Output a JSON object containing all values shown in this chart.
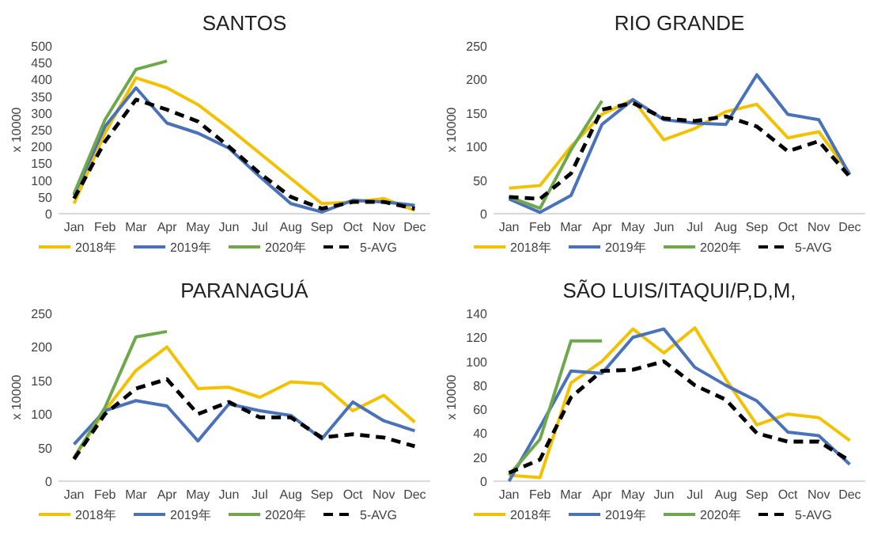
{
  "chart_data": [
    {
      "type": "line",
      "title": "SANTOS",
      "ylabel": "x 10000",
      "categories": [
        "Jan",
        "Feb",
        "Mar",
        "Apr",
        "May",
        "Jun",
        "Jul",
        "Aug",
        "Sep",
        "Oct",
        "Nov",
        "Dec"
      ],
      "ylim": [
        0,
        500
      ],
      "yticks": [
        0,
        50,
        100,
        150,
        200,
        250,
        300,
        350,
        400,
        450,
        500
      ],
      "legend": "bottom",
      "series": [
        {
          "name": "2018年",
          "color": "#f2c200",
          "values": [
            30,
            240,
            405,
            375,
            325,
            255,
            180,
            105,
            30,
            35,
            45,
            10
          ]
        },
        {
          "name": "2019年",
          "color": "#4a72b8",
          "values": [
            55,
            260,
            375,
            270,
            240,
            195,
            110,
            30,
            5,
            40,
            35,
            25
          ]
        },
        {
          "name": "2020年",
          "color": "#6fa84c",
          "values": [
            60,
            280,
            430,
            455,
            null,
            null,
            null,
            null,
            null,
            null,
            null,
            null
          ]
        },
        {
          "name": "5-AVG",
          "color": "#000000",
          "line_style": "dashed",
          "values": [
            45,
            215,
            340,
            310,
            275,
            200,
            120,
            50,
            15,
            35,
            35,
            15
          ]
        }
      ]
    },
    {
      "type": "line",
      "title": "RIO GRANDE",
      "ylabel": "x 10000",
      "categories": [
        "Jan",
        "Feb",
        "Mar",
        "Apr",
        "May",
        "Jun",
        "Jul",
        "Aug",
        "Sep",
        "Oct",
        "Nov",
        "Dec"
      ],
      "ylim": [
        0,
        250
      ],
      "yticks": [
        0,
        50,
        100,
        150,
        200,
        250
      ],
      "legend": "bottom",
      "series": [
        {
          "name": "2018年",
          "color": "#f2c200",
          "values": [
            38,
            42,
            100,
            148,
            170,
            110,
            127,
            152,
            163,
            113,
            122,
            60
          ]
        },
        {
          "name": "2019年",
          "color": "#4a72b8",
          "values": [
            22,
            2,
            27,
            133,
            170,
            140,
            135,
            133,
            207,
            148,
            140,
            58
          ]
        },
        {
          "name": "2020年",
          "color": "#6fa84c",
          "values": [
            25,
            8,
            95,
            168,
            null,
            null,
            null,
            null,
            null,
            null,
            null,
            null
          ]
        },
        {
          "name": "5-AVG",
          "color": "#000000",
          "line_style": "dashed",
          "values": [
            25,
            22,
            60,
            155,
            165,
            142,
            138,
            145,
            130,
            93,
            108,
            55
          ]
        }
      ]
    },
    {
      "type": "line",
      "title": "PARANAGUÁ",
      "ylabel": "x 10000",
      "categories": [
        "Jan",
        "Feb",
        "Mar",
        "Apr",
        "May",
        "Jun",
        "Jul",
        "Aug",
        "Sep",
        "Oct",
        "Nov",
        "Dec"
      ],
      "ylim": [
        0,
        250
      ],
      "yticks": [
        0,
        50,
        100,
        150,
        200,
        250
      ],
      "legend": "bottom",
      "series": [
        {
          "name": "2018年",
          "color": "#f2c200",
          "values": [
            35,
            105,
            165,
            200,
            138,
            140,
            125,
            148,
            145,
            105,
            128,
            88
          ]
        },
        {
          "name": "2019年",
          "color": "#4a72b8",
          "values": [
            55,
            105,
            120,
            112,
            60,
            115,
            105,
            98,
            63,
            118,
            90,
            75
          ]
        },
        {
          "name": "2020年",
          "color": "#6fa84c",
          "values": [
            35,
            110,
            215,
            223,
            null,
            null,
            null,
            null,
            null,
            null,
            null,
            null
          ]
        },
        {
          "name": "5-AVG",
          "color": "#000000",
          "line_style": "dashed",
          "values": [
            33,
            100,
            138,
            152,
            100,
            118,
            95,
            95,
            65,
            70,
            65,
            52
          ]
        }
      ]
    },
    {
      "type": "line",
      "title": "SÃO LUIS/ITAQUI/P,D,M,",
      "ylabel": "x 10000",
      "categories": [
        "Jan",
        "Feb",
        "Mar",
        "Apr",
        "May",
        "Jun",
        "Jul",
        "Aug",
        "Sep",
        "Oct",
        "Nov",
        "Dec"
      ],
      "ylim": [
        0,
        140
      ],
      "yticks": [
        0,
        20,
        40,
        60,
        80,
        100,
        120,
        140
      ],
      "legend": "bottom",
      "series": [
        {
          "name": "2018年",
          "color": "#f2c200",
          "values": [
            5,
            3,
            82,
            100,
            127,
            107,
            128,
            85,
            47,
            56,
            53,
            34
          ]
        },
        {
          "name": "2019年",
          "color": "#4a72b8",
          "values": [
            0,
            45,
            92,
            90,
            120,
            127,
            95,
            80,
            67,
            41,
            38,
            14
          ]
        },
        {
          "name": "2020年",
          "color": "#6fa84c",
          "values": [
            5,
            35,
            117,
            117,
            null,
            null,
            null,
            null,
            null,
            null,
            null,
            null
          ]
        },
        {
          "name": "5-AVG",
          "color": "#000000",
          "line_style": "dashed",
          "values": [
            7,
            18,
            70,
            92,
            93,
            100,
            80,
            68,
            40,
            33,
            33,
            17
          ]
        }
      ]
    }
  ]
}
